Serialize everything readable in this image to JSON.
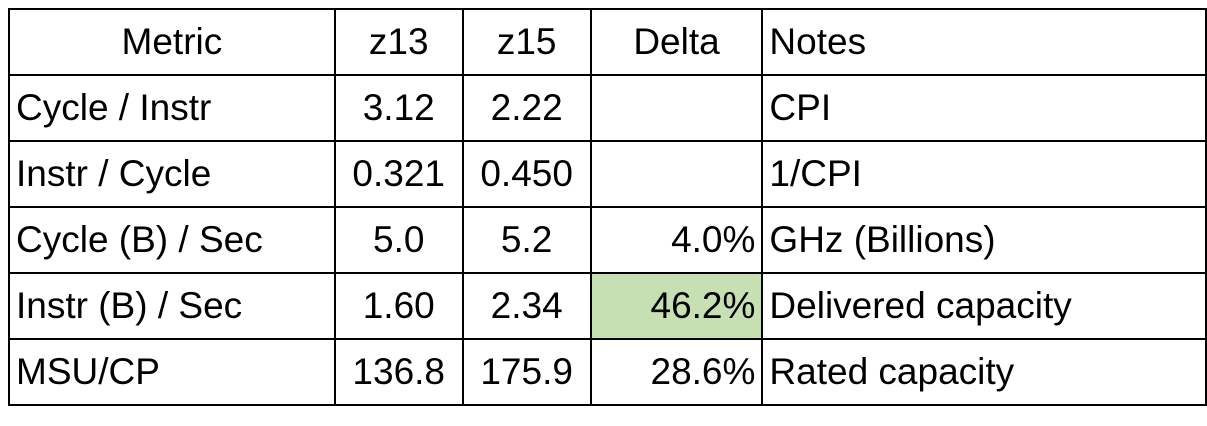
{
  "table": {
    "header": [
      "Metric",
      "z13",
      "z15",
      "Delta",
      "Notes"
    ],
    "rows": [
      [
        "Cycle / Instr",
        "3.12",
        "2.22",
        null,
        "CPI"
      ],
      [
        "Instr / Cycle",
        "0.321",
        "0.450",
        null,
        "1/CPI"
      ],
      [
        "Cycle (B) / Sec",
        "5.0",
        "5.2",
        "4.0%",
        "GHz (Billions)"
      ],
      [
        "Instr (B) / Sec",
        "1.60",
        "2.34",
        "46.2%",
        "Delivered capacity"
      ],
      [
        "MSU/CP",
        "136.8",
        "175.9",
        "28.6%",
        "Rated capacity"
      ]
    ],
    "highlight": {
      "row": 3,
      "column": 3,
      "color": "#c6e0b4"
    }
  }
}
